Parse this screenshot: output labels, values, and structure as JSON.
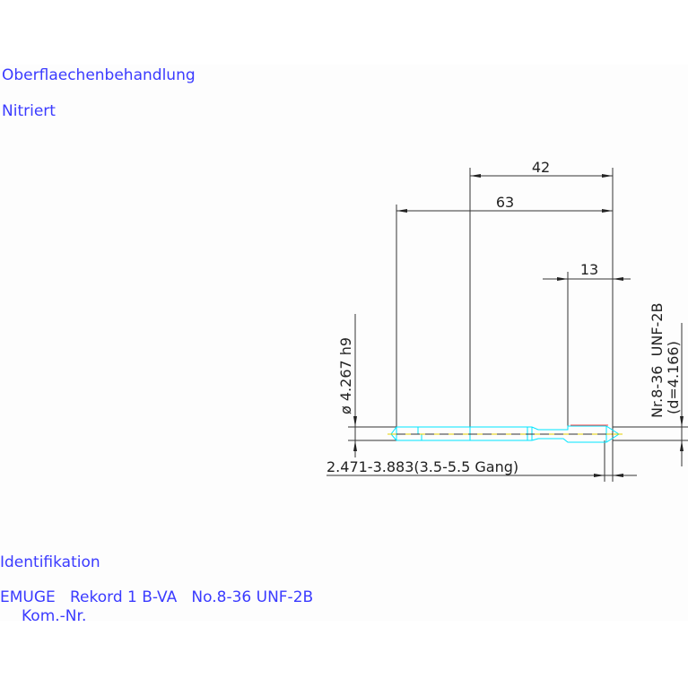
{
  "notes": {
    "surface_label": "Oberflaechenbehandlung",
    "surface_value": "Nitriert",
    "ident_label": "Identifikation",
    "ident_value": "EMUGE   Rekord 1 B-VA   No.8-36 UNF-2B",
    "kom_label": "Kom.-Nr."
  },
  "dimensions": {
    "overall_to_shank": "42",
    "total_length": "63",
    "thread_length": "13",
    "shank_diameter": "ø 4.267 h9",
    "thread_spec": "Nr.8-36  UNF-2B",
    "thread_d": "(d=4.166)",
    "chamfer": "2.471-3.883(3.5-5.5 Gang)"
  },
  "colors": {
    "text": "#3b3bff",
    "tool_outline": "#00e5ff",
    "axis": "#e5d000",
    "accent": "#ff4040"
  }
}
